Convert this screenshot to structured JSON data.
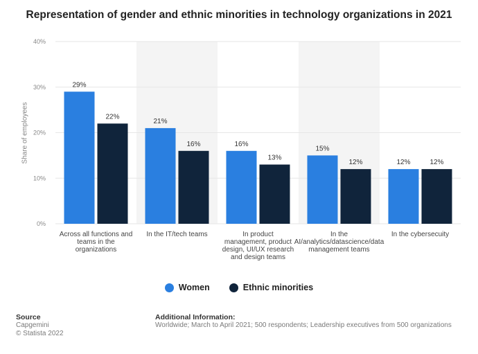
{
  "chart_data": {
    "type": "bar",
    "title": "Representation of gender and ethnic minorities in technology organizations in 2021",
    "ylabel": "Share of employees",
    "ylim": [
      0,
      40
    ],
    "yticks": [
      "0%",
      "10%",
      "20%",
      "30%",
      "40%"
    ],
    "ytick_values": [
      0,
      10,
      20,
      30,
      40
    ],
    "categories": [
      [
        "Across all functions and",
        "teams in the",
        "organizations"
      ],
      [
        "In the IT/tech teams"
      ],
      [
        "In product",
        "management, product",
        "design, UI/UX research",
        "and design teams"
      ],
      [
        "In the",
        "AI/analytics/datascience/data",
        "management teams"
      ],
      [
        "In the cybersecuity"
      ]
    ],
    "series": [
      {
        "name": "Women",
        "values": [
          29,
          21,
          16,
          15,
          12
        ],
        "labels": [
          "29%",
          "21%",
          "16%",
          "15%",
          "12%"
        ]
      },
      {
        "name": "Ethnic minorities",
        "values": [
          22,
          16,
          13,
          12,
          12
        ],
        "labels": [
          "22%",
          "16%",
          "13%",
          "12%",
          "12%"
        ]
      }
    ],
    "legend_position": "bottom",
    "grid": true
  },
  "colors": {
    "women": "#2a7fe0",
    "ethnic_minorities": "#10243b",
    "band": "#f4f4f4",
    "grid": "#e6e6e6"
  },
  "legend": {
    "women": "Women",
    "ethnic": "Ethnic minorities"
  },
  "footer": {
    "source_head": "Source",
    "source_line1": "Capgemini",
    "source_line2": "© Statista 2022",
    "info_head": "Additional Information:",
    "info_text": "Worldwide; March to April 2021; 500 respondents; Leadership executives from 500 organizations"
  }
}
